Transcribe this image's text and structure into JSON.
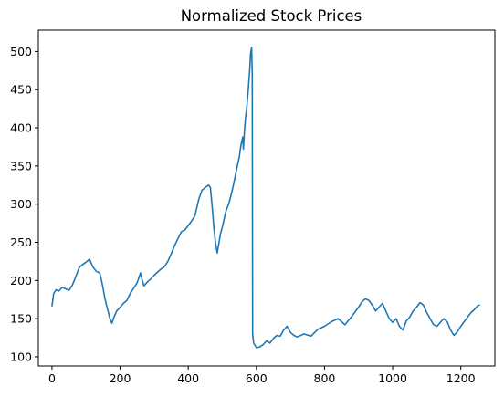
{
  "chart_data": {
    "type": "line",
    "title": "Normalized Stock Prices",
    "xlabel": "",
    "ylabel": "",
    "xlim": [
      -40,
      1300
    ],
    "ylim": [
      88,
      528
    ],
    "grid": false,
    "legend": "none",
    "line_color": "#1f77b4",
    "x_ticks": [
      0,
      200,
      400,
      600,
      800,
      1000,
      1200
    ],
    "x_tick_labels": [
      "0",
      "200",
      "400",
      "600",
      "800",
      "1000",
      "1200"
    ],
    "y_ticks": [
      100,
      150,
      200,
      250,
      300,
      350,
      400,
      450,
      500
    ],
    "y_tick_labels": [
      "100",
      "150",
      "200",
      "250",
      "300",
      "350",
      "400",
      "450",
      "500"
    ],
    "series": [
      {
        "points": [
          [
            0,
            166
          ],
          [
            5,
            183
          ],
          [
            12,
            188
          ],
          [
            20,
            186
          ],
          [
            30,
            191
          ],
          [
            40,
            189
          ],
          [
            50,
            187
          ],
          [
            60,
            194
          ],
          [
            70,
            205
          ],
          [
            80,
            217
          ],
          [
            90,
            221
          ],
          [
            100,
            224
          ],
          [
            110,
            228
          ],
          [
            120,
            218
          ],
          [
            130,
            212
          ],
          [
            140,
            210
          ],
          [
            145,
            201
          ],
          [
            150,
            190
          ],
          [
            155,
            177
          ],
          [
            160,
            168
          ],
          [
            170,
            150
          ],
          [
            176,
            144
          ],
          [
            182,
            152
          ],
          [
            190,
            160
          ],
          [
            200,
            165
          ],
          [
            210,
            170
          ],
          [
            220,
            174
          ],
          [
            230,
            183
          ],
          [
            240,
            190
          ],
          [
            250,
            197
          ],
          [
            260,
            210
          ],
          [
            265,
            200
          ],
          [
            270,
            193
          ],
          [
            280,
            198
          ],
          [
            290,
            202
          ],
          [
            300,
            207
          ],
          [
            310,
            211
          ],
          [
            320,
            215
          ],
          [
            330,
            218
          ],
          [
            340,
            225
          ],
          [
            350,
            235
          ],
          [
            360,
            246
          ],
          [
            370,
            255
          ],
          [
            380,
            264
          ],
          [
            390,
            266
          ],
          [
            400,
            272
          ],
          [
            410,
            278
          ],
          [
            420,
            285
          ],
          [
            430,
            305
          ],
          [
            440,
            318
          ],
          [
            450,
            322
          ],
          [
            460,
            325
          ],
          [
            465,
            322
          ],
          [
            470,
            298
          ],
          [
            475,
            270
          ],
          [
            480,
            250
          ],
          [
            485,
            236
          ],
          [
            490,
            249
          ],
          [
            495,
            262
          ],
          [
            500,
            270
          ],
          [
            505,
            280
          ],
          [
            510,
            290
          ],
          [
            520,
            302
          ],
          [
            530,
            320
          ],
          [
            540,
            341
          ],
          [
            550,
            362
          ],
          [
            555,
            378
          ],
          [
            560,
            388
          ],
          [
            562,
            372
          ],
          [
            565,
            395
          ],
          [
            568,
            413
          ],
          [
            572,
            428
          ],
          [
            576,
            450
          ],
          [
            580,
            472
          ],
          [
            583,
            498
          ],
          [
            586,
            505
          ],
          [
            588,
            470
          ],
          [
            589,
            130
          ],
          [
            592,
            118
          ],
          [
            600,
            112
          ],
          [
            610,
            113
          ],
          [
            620,
            116
          ],
          [
            630,
            121
          ],
          [
            640,
            118
          ],
          [
            650,
            124
          ],
          [
            660,
            128
          ],
          [
            670,
            127
          ],
          [
            680,
            135
          ],
          [
            690,
            140
          ],
          [
            700,
            132
          ],
          [
            710,
            128
          ],
          [
            720,
            126
          ],
          [
            740,
            130
          ],
          [
            760,
            127
          ],
          [
            780,
            136
          ],
          [
            800,
            140
          ],
          [
            820,
            146
          ],
          [
            840,
            150
          ],
          [
            860,
            142
          ],
          [
            880,
            153
          ],
          [
            900,
            165
          ],
          [
            910,
            172
          ],
          [
            920,
            176
          ],
          [
            930,
            174
          ],
          [
            940,
            168
          ],
          [
            950,
            160
          ],
          [
            960,
            165
          ],
          [
            970,
            170
          ],
          [
            980,
            160
          ],
          [
            990,
            150
          ],
          [
            1000,
            145
          ],
          [
            1010,
            150
          ],
          [
            1020,
            140
          ],
          [
            1030,
            135
          ],
          [
            1040,
            147
          ],
          [
            1050,
            152
          ],
          [
            1060,
            160
          ],
          [
            1070,
            165
          ],
          [
            1080,
            171
          ],
          [
            1090,
            168
          ],
          [
            1100,
            158
          ],
          [
            1110,
            150
          ],
          [
            1120,
            142
          ],
          [
            1130,
            140
          ],
          [
            1140,
            145
          ],
          [
            1150,
            150
          ],
          [
            1160,
            146
          ],
          [
            1170,
            135
          ],
          [
            1180,
            128
          ],
          [
            1190,
            133
          ],
          [
            1200,
            140
          ],
          [
            1210,
            146
          ],
          [
            1220,
            152
          ],
          [
            1230,
            158
          ],
          [
            1240,
            162
          ],
          [
            1250,
            167
          ],
          [
            1256,
            168
          ]
        ]
      }
    ]
  }
}
